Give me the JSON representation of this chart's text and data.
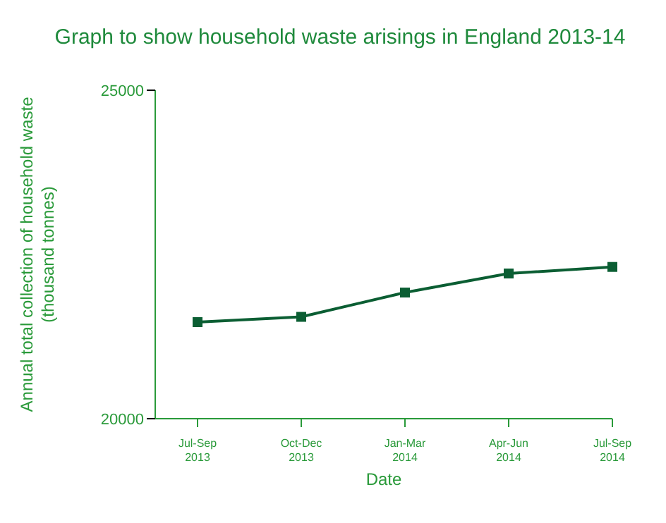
{
  "chart_data": {
    "type": "line",
    "title": "Graph to show household waste arisings in England 2013-14",
    "xlabel": "Date",
    "ylabel": "Annual total collection of household waste\n(thousand tonnes)",
    "categories": [
      "Jul-Sep\n2013",
      "Oct-Dec\n2013",
      "Jan-Mar\n2014",
      "Apr-Jun\n2014",
      "Jul-Sep\n2014"
    ],
    "series": [
      {
        "color": "#0b5e33",
        "values": [
          21470,
          21550,
          21920,
          22210,
          22310
        ]
      }
    ],
    "ylim": [
      20000,
      25000
    ],
    "yticks": [
      20000,
      25000
    ],
    "grid": false,
    "legend": false,
    "marker": "square",
    "line_style": "solid"
  }
}
